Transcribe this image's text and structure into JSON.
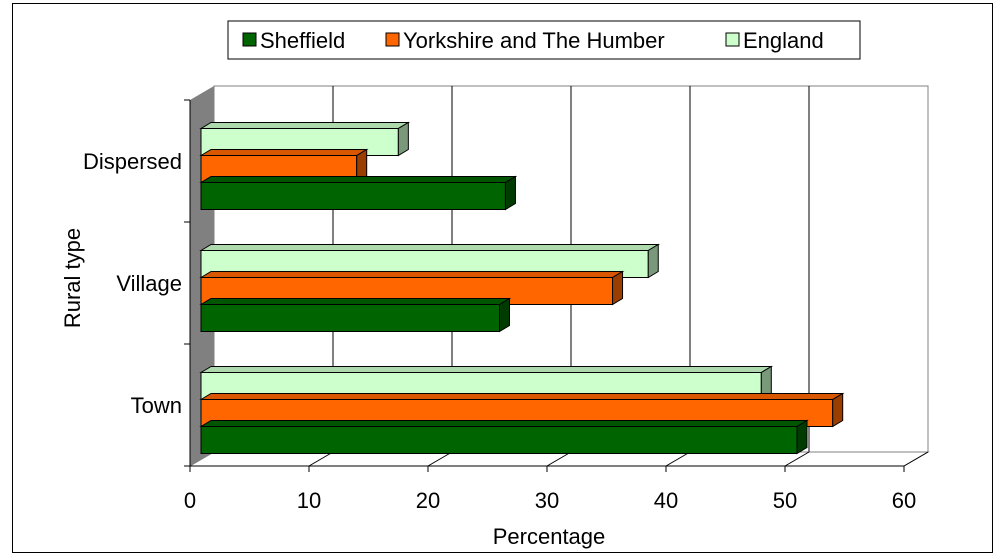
{
  "chart_data": {
    "type": "bar",
    "orientation": "horizontal",
    "style": "3d",
    "categories": [
      "Dispersed",
      "Village",
      "Town"
    ],
    "series": [
      {
        "name": "Sheffield",
        "color": "#006400",
        "values": [
          25.5,
          25,
          50
        ]
      },
      {
        "name": "Yorkshire and The Humber",
        "color": "#ff6600",
        "values": [
          13,
          34.5,
          53
        ]
      },
      {
        "name": "England",
        "color": "#ccffcc",
        "values": [
          16.5,
          37.5,
          47
        ]
      }
    ],
    "xlabel": "Percentage",
    "ylabel": "Rural type",
    "xlim": [
      0,
      60
    ],
    "xticks": [
      "0",
      "10",
      "20",
      "30",
      "40",
      "50",
      "60"
    ],
    "grid": true,
    "legend_position": "top"
  }
}
